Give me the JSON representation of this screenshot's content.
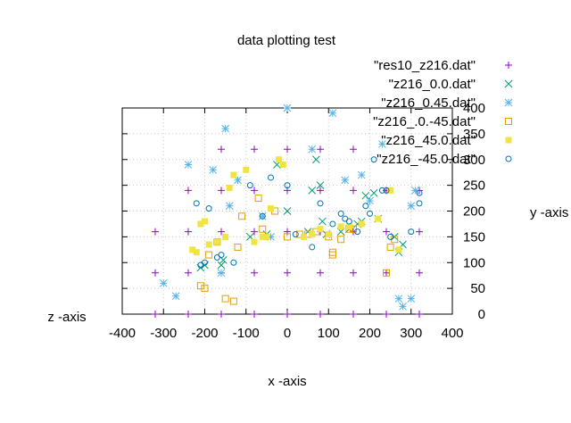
{
  "chart_data": {
    "type": "scatter",
    "title": "data plotting test",
    "xlabel": "x -axis",
    "ylabel": "y -axis",
    "zlabel": "z -axis",
    "xlim": [
      -400,
      400
    ],
    "ylim": [
      0,
      400
    ],
    "x_ticks": [
      "-400",
      "-300",
      "-200",
      "-100",
      "0",
      "100",
      "200",
      "300",
      "400"
    ],
    "y_ticks": [
      "0",
      "50",
      "100",
      "150",
      "200",
      "250",
      "300",
      "350",
      "400"
    ],
    "grid": true,
    "legend_position": "top-right",
    "series": [
      {
        "name": "\"res10_z216.dat\"",
        "color": "#9400d3",
        "marker": "plus",
        "points": [
          [
            -320,
            0
          ],
          [
            -240,
            0
          ],
          [
            -160,
            0
          ],
          [
            -80,
            0
          ],
          [
            0,
            0
          ],
          [
            80,
            0
          ],
          [
            160,
            0
          ],
          [
            240,
            0
          ],
          [
            320,
            0
          ],
          [
            -320,
            80
          ],
          [
            -240,
            80
          ],
          [
            -160,
            80
          ],
          [
            -80,
            80
          ],
          [
            0,
            80
          ],
          [
            80,
            80
          ],
          [
            160,
            80
          ],
          [
            240,
            80
          ],
          [
            320,
            80
          ],
          [
            -320,
            160
          ],
          [
            -240,
            160
          ],
          [
            -160,
            160
          ],
          [
            -80,
            160
          ],
          [
            0,
            160
          ],
          [
            80,
            160
          ],
          [
            160,
            160
          ],
          [
            240,
            160
          ],
          [
            320,
            160
          ],
          [
            -240,
            240
          ],
          [
            -160,
            240
          ],
          [
            -80,
            240
          ],
          [
            0,
            240
          ],
          [
            80,
            240
          ],
          [
            160,
            240
          ],
          [
            240,
            240
          ],
          [
            320,
            240
          ],
          [
            -160,
            320
          ],
          [
            -80,
            320
          ],
          [
            0,
            320
          ],
          [
            80,
            320
          ],
          [
            160,
            320
          ]
        ]
      },
      {
        "name": "\"z216_0.0.dat\"",
        "color": "#009e73",
        "marker": "cross",
        "points": [
          [
            -210,
            90
          ],
          [
            -200,
            95
          ],
          [
            -160,
            95
          ],
          [
            -155,
            105
          ],
          [
            -90,
            150
          ],
          [
            -50,
            155
          ],
          [
            -25,
            290
          ],
          [
            0,
            200
          ],
          [
            50,
            160
          ],
          [
            60,
            240
          ],
          [
            70,
            300
          ],
          [
            80,
            250
          ],
          [
            85,
            180
          ],
          [
            95,
            155
          ],
          [
            130,
            160
          ],
          [
            150,
            165
          ],
          [
            170,
            175
          ],
          [
            180,
            180
          ],
          [
            190,
            230
          ],
          [
            210,
            235
          ],
          [
            220,
            185
          ],
          [
            260,
            150
          ],
          [
            270,
            120
          ],
          [
            280,
            135
          ]
        ]
      },
      {
        "name": "\"z216_0.45.dat\"",
        "color": "#56b4e9",
        "marker": "star",
        "points": [
          [
            -240,
            290
          ],
          [
            -180,
            280
          ],
          [
            -160,
            80
          ],
          [
            -150,
            360
          ],
          [
            -140,
            210
          ],
          [
            -120,
            260
          ],
          [
            -60,
            190
          ],
          [
            -40,
            150
          ],
          [
            0,
            400
          ],
          [
            60,
            320
          ],
          [
            110,
            390
          ],
          [
            140,
            260
          ],
          [
            180,
            270
          ],
          [
            200,
            220
          ],
          [
            230,
            330
          ],
          [
            270,
            30
          ],
          [
            280,
            15
          ],
          [
            300,
            30
          ],
          [
            310,
            240
          ],
          [
            300,
            210
          ],
          [
            -300,
            60
          ],
          [
            -270,
            35
          ]
        ]
      },
      {
        "name": "\"z216_.0.-45.dat\"",
        "color": "#e69f00",
        "marker": "square-open",
        "points": [
          [
            -210,
            55
          ],
          [
            -200,
            50
          ],
          [
            -190,
            115
          ],
          [
            -170,
            140
          ],
          [
            -150,
            30
          ],
          [
            -130,
            25
          ],
          [
            -120,
            130
          ],
          [
            -110,
            190
          ],
          [
            -70,
            225
          ],
          [
            -60,
            165
          ],
          [
            -30,
            200
          ],
          [
            0,
            150
          ],
          [
            30,
            155
          ],
          [
            50,
            155
          ],
          [
            70,
            160
          ],
          [
            100,
            150
          ],
          [
            110,
            120
          ],
          [
            110,
            115
          ],
          [
            130,
            145
          ],
          [
            150,
            165
          ],
          [
            160,
            165
          ],
          [
            240,
            80
          ],
          [
            250,
            130
          ],
          [
            260,
            145
          ]
        ]
      },
      {
        "name": "\"z216_45.0.dat\"",
        "color": "#f0e442",
        "marker": "square-filled",
        "points": [
          [
            -230,
            125
          ],
          [
            -220,
            120
          ],
          [
            -210,
            175
          ],
          [
            -200,
            180
          ],
          [
            -190,
            135
          ],
          [
            -170,
            140
          ],
          [
            -150,
            150
          ],
          [
            -140,
            245
          ],
          [
            -130,
            270
          ],
          [
            -100,
            280
          ],
          [
            -80,
            140
          ],
          [
            -60,
            150
          ],
          [
            -50,
            150
          ],
          [
            -40,
            205
          ],
          [
            -20,
            300
          ],
          [
            -10,
            290
          ],
          [
            40,
            150
          ],
          [
            60,
            155
          ],
          [
            80,
            165
          ],
          [
            100,
            155
          ],
          [
            130,
            170
          ],
          [
            150,
            170
          ],
          [
            180,
            175
          ],
          [
            220,
            185
          ],
          [
            250,
            240
          ],
          [
            270,
            125
          ]
        ]
      },
      {
        "name": "\"z216_-45.0.dat\"",
        "color": "#0072b2",
        "marker": "circle-open",
        "points": [
          [
            -220,
            215
          ],
          [
            -210,
            95
          ],
          [
            -200,
            100
          ],
          [
            -190,
            205
          ],
          [
            -170,
            110
          ],
          [
            -160,
            115
          ],
          [
            -130,
            100
          ],
          [
            -90,
            250
          ],
          [
            -60,
            190
          ],
          [
            -40,
            265
          ],
          [
            0,
            250
          ],
          [
            20,
            155
          ],
          [
            60,
            130
          ],
          [
            80,
            215
          ],
          [
            110,
            175
          ],
          [
            130,
            195
          ],
          [
            140,
            185
          ],
          [
            150,
            180
          ],
          [
            170,
            160
          ],
          [
            190,
            210
          ],
          [
            200,
            195
          ],
          [
            210,
            300
          ],
          [
            230,
            240
          ],
          [
            240,
            240
          ],
          [
            250,
            150
          ],
          [
            300,
            160
          ],
          [
            320,
            215
          ],
          [
            320,
            235
          ]
        ]
      }
    ]
  }
}
